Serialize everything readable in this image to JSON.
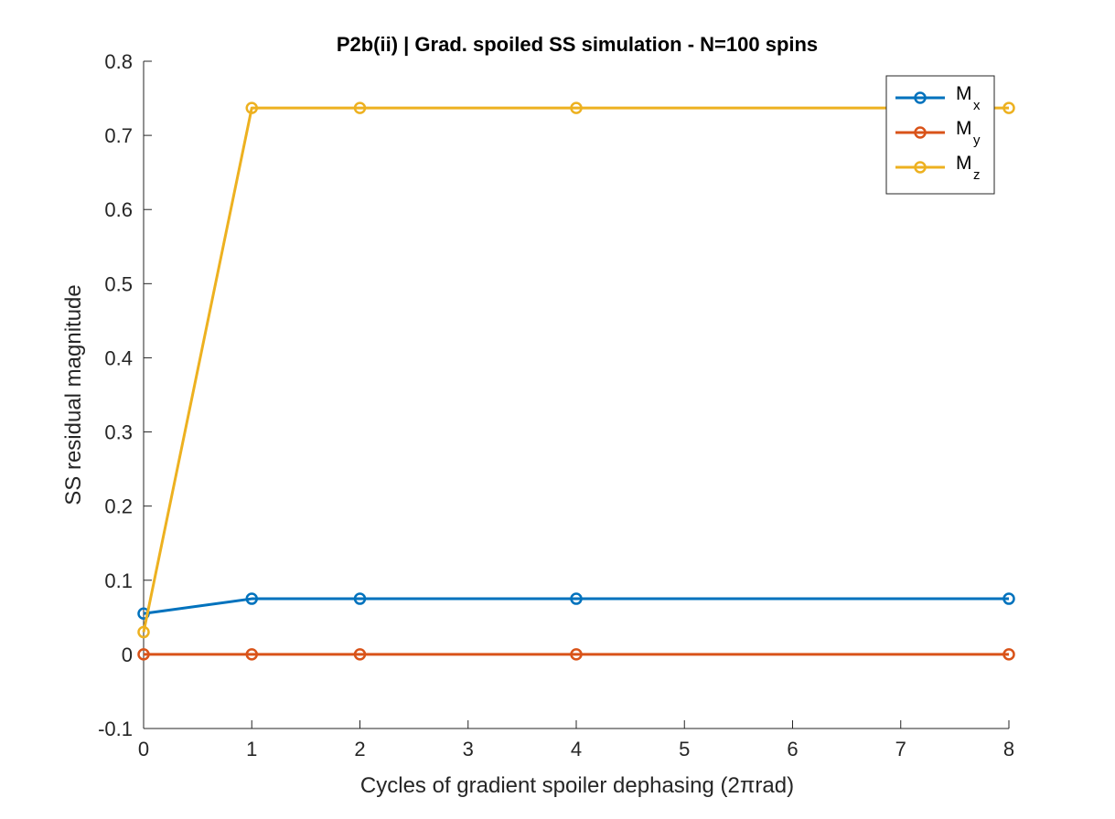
{
  "chart_data": {
    "type": "line",
    "title": "P2b(ii) | Grad. spoiled SS simulation - N=100 spins",
    "xlabel": "Cycles of gradient spoiler dephasing (2πrad)",
    "ylabel": "SS residual magnitude",
    "xlim": [
      0,
      8
    ],
    "ylim": [
      -0.1,
      0.8
    ],
    "x_ticks": [
      "0",
      "1",
      "2",
      "3",
      "4",
      "5",
      "6",
      "7",
      "8"
    ],
    "y_ticks": [
      "-0.1",
      "0",
      "0.1",
      "0.2",
      "0.3",
      "0.4",
      "0.5",
      "0.6",
      "0.7",
      "0.8"
    ],
    "x": [
      0,
      1,
      2,
      4,
      8
    ],
    "series": [
      {
        "name": "M",
        "subscript": "x",
        "color": "#0072BD",
        "values": [
          0.055,
          0.075,
          0.075,
          0.075,
          0.075
        ]
      },
      {
        "name": "M",
        "subscript": "y",
        "color": "#D95319",
        "values": [
          0.0,
          0.0,
          0.0,
          0.0,
          0.0
        ]
      },
      {
        "name": "M",
        "subscript": "z",
        "color": "#EDB120",
        "values": [
          0.03,
          0.737,
          0.737,
          0.737,
          0.737
        ]
      }
    ],
    "grid": false,
    "legend_position": "top-right",
    "marker": "circle"
  }
}
